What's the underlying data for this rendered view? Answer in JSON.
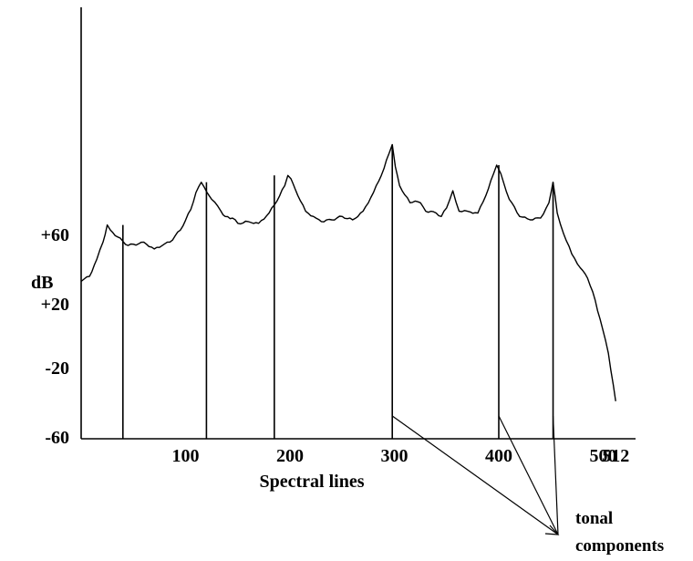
{
  "chart_data": {
    "type": "line",
    "xlabel": "Spectral lines",
    "ylabel": "dB",
    "x_ticks": [
      {
        "value": 100,
        "label": "100"
      },
      {
        "value": 200,
        "label": "200"
      },
      {
        "value": 300,
        "label": "300"
      },
      {
        "value": 400,
        "label": "400"
      },
      {
        "value": 500,
        "label": "500"
      },
      {
        "value": 512,
        "label": "512"
      }
    ],
    "y_ticks": [
      {
        "value": 60,
        "label": "+60"
      },
      {
        "value": 20,
        "label": "+20"
      },
      {
        "value": -20,
        "label": "-20"
      },
      {
        "value": -60,
        "label": "-60"
      }
    ],
    "xlim": [
      0,
      535
    ],
    "ylim": [
      -60,
      160
    ],
    "grid": false,
    "series": [
      {
        "x": [
          0,
          8,
          15,
          21,
          25,
          28,
          35,
          45,
          55,
          60,
          70,
          80,
          85,
          95,
          105,
          110,
          115,
          118,
          125,
          134,
          138,
          145,
          150,
          160,
          170,
          180,
          190,
          195,
          198,
          201,
          205,
          215,
          225,
          230,
          240,
          250,
          260,
          270,
          280,
          290,
          295,
          298,
          301,
          305,
          315,
          320,
          325,
          330,
          340,
          345,
          350,
          356,
          362,
          370,
          380,
          390,
          395,
          398,
          402,
          410,
          420,
          430,
          440,
          448,
          452,
          456,
          462,
          470,
          478,
          485,
          490,
          497,
          505,
          512
        ],
        "y": [
          32,
          35,
          45,
          55,
          65,
          62,
          58,
          53,
          54,
          55,
          51,
          54,
          55,
          62,
          74,
          84,
          90,
          87,
          80,
          73,
          70,
          69,
          66,
          67,
          66,
          72,
          82,
          88,
          94,
          92,
          86,
          73,
          69,
          67,
          68,
          70,
          68,
          73,
          84,
          98,
          107,
          112,
          99,
          88,
          78,
          79,
          78,
          73,
          72,
          70,
          75,
          85,
          73,
          73,
          72,
          86,
          95,
          100,
          95,
          80,
          70,
          68,
          69,
          78,
          90,
          72,
          60,
          48,
          40,
          34,
          26,
          10,
          -10,
          -38
        ]
      }
    ],
    "tonal_components": [
      40,
      120,
      185,
      298,
      400,
      452
    ],
    "annotation": {
      "line1": "tonal",
      "line2": "components"
    },
    "annotated_components": [
      298,
      400,
      452
    ]
  }
}
